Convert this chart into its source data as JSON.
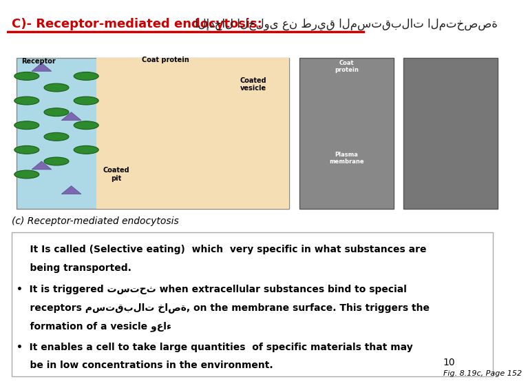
{
  "title_left": "C)- Receptor-mediated endocytosis:",
  "title_right": "الإدخال الخلوى عن طريق المستقبلات المتخصصة",
  "bg_color": "#ffffff",
  "header_bg": "#cc0000",
  "image_region_color": "#f5f5f5",
  "bottom_text_lines": [
    "    It Is called (Selective eating)  which  very specific in what substances are",
    "    being transported.",
    "•  It is triggered تستحث when extracellular substances bind to special",
    "    receptors مستقبلات خاصة, on the membrane surface. This triggers the",
    "    formation of a vesicle وعاء",
    "•  It enables a cell to take large quantities  of specific materials that may",
    "    be in low concentrations in the environment."
  ],
  "caption_text": "(c) Receptor-mediated endocytosis",
  "footnote": "10",
  "fig_ref": "Fig. 8.19c, Page 152",
  "title_fontsize": 13,
  "body_fontsize": 11,
  "caption_fontsize": 10
}
